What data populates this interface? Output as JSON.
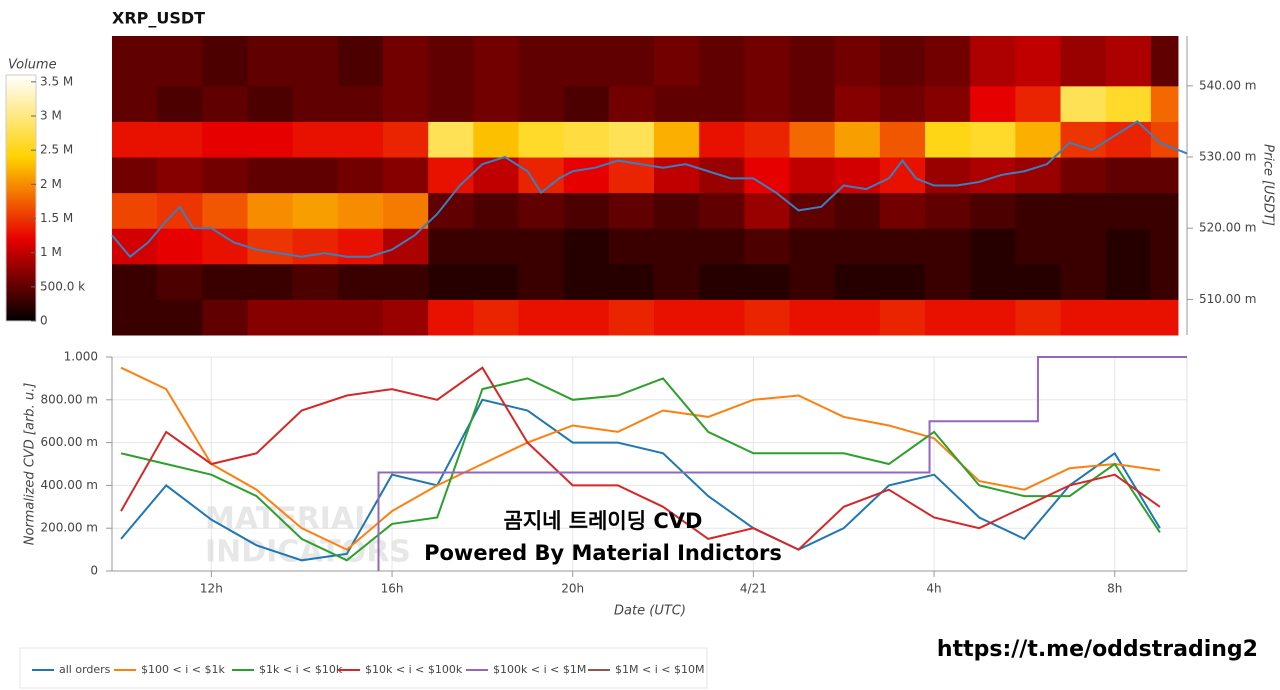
{
  "chart_data": [
    {
      "type": "heatmap",
      "title": "XRP_USDT",
      "colorbar_title": "Volume",
      "ylabel": "Price [USDT]",
      "xlim": [
        9.8,
        33.6
      ],
      "ylim": [
        505,
        547
      ],
      "x_bins": [
        9.8,
        10.8,
        11.8,
        12.8,
        13.8,
        14.8,
        15.8,
        16.8,
        17.8,
        18.8,
        19.8,
        20.8,
        21.8,
        22.8,
        23.8,
        24.8,
        25.8,
        26.8,
        27.8,
        28.8,
        29.8,
        30.8,
        31.8,
        32.8,
        33.4
      ],
      "y_bins": [
        505,
        510,
        515,
        520,
        525,
        530,
        535,
        540,
        547
      ],
      "z": [
        [
          0.3,
          0.3,
          0.5,
          0.7,
          0.7,
          0.7,
          0.8,
          1.3,
          1.4,
          1.3,
          1.3,
          1.4,
          1.3,
          1.3,
          1.4,
          1.3,
          1.3,
          1.4,
          1.3,
          1.3,
          1.4,
          1.3,
          1.3,
          1.3
        ],
        [
          0.3,
          0.4,
          0.3,
          0.3,
          0.4,
          0.3,
          0.3,
          0.2,
          0.2,
          0.3,
          0.2,
          0.2,
          0.3,
          0.2,
          0.2,
          0.3,
          0.2,
          0.2,
          0.3,
          0.2,
          0.2,
          0.3,
          0.2,
          0.3
        ],
        [
          1.1,
          1.2,
          1.3,
          1.5,
          1.4,
          1.3,
          0.9,
          0.3,
          0.3,
          0.3,
          0.2,
          0.3,
          0.3,
          0.3,
          0.4,
          0.3,
          0.3,
          0.3,
          0.3,
          0.2,
          0.3,
          0.3,
          0.2,
          0.3
        ],
        [
          1.6,
          1.5,
          1.7,
          2.0,
          2.1,
          2.0,
          1.9,
          0.5,
          0.4,
          0.5,
          0.4,
          0.5,
          0.4,
          0.5,
          0.8,
          0.5,
          0.4,
          0.6,
          0.5,
          0.4,
          0.3,
          0.3,
          0.3,
          0.3
        ],
        [
          0.6,
          0.7,
          0.6,
          0.5,
          0.5,
          0.6,
          0.7,
          1.3,
          1.0,
          1.4,
          1.2,
          1.4,
          1.0,
          0.8,
          1.2,
          1.0,
          1.1,
          1.3,
          0.8,
          0.9,
          0.8,
          0.6,
          0.5,
          0.5
        ],
        [
          1.3,
          1.3,
          1.2,
          1.2,
          1.3,
          1.3,
          1.4,
          2.8,
          2.3,
          2.6,
          2.7,
          2.8,
          2.2,
          1.3,
          1.4,
          1.8,
          2.1,
          1.7,
          2.5,
          2.6,
          2.2,
          1.5,
          1.4,
          1.6
        ],
        [
          0.5,
          0.4,
          0.5,
          0.4,
          0.5,
          0.5,
          0.6,
          0.5,
          0.6,
          0.5,
          0.4,
          0.6,
          0.5,
          0.5,
          0.6,
          0.5,
          0.7,
          0.6,
          0.7,
          1.2,
          1.4,
          2.8,
          2.6,
          1.8
        ],
        [
          0.5,
          0.5,
          0.4,
          0.5,
          0.5,
          0.4,
          0.6,
          0.5,
          0.6,
          0.5,
          0.5,
          0.5,
          0.6,
          0.5,
          0.6,
          0.5,
          0.6,
          0.5,
          0.6,
          0.9,
          1.0,
          0.8,
          0.9,
          0.5
        ]
      ],
      "colorscale": [
        "#000000",
        "#e60000",
        "#ffd200",
        "#ffffff"
      ],
      "zlim": [
        0,
        3.6
      ],
      "zticks": [
        0,
        {
          "value": 0.5,
          "label": "500.0 k"
        },
        {
          "value": 1,
          "label": "1 M"
        },
        {
          "value": 1.5,
          "label": "1.5 M"
        },
        {
          "value": 2,
          "label": "2 M"
        },
        {
          "value": 2.5,
          "label": "2.5 M"
        },
        {
          "value": 3,
          "label": "3 M"
        },
        {
          "value": 3.5,
          "label": "3.5 M"
        }
      ],
      "yticks": [
        {
          "value": 510,
          "label": "510.00 m"
        },
        {
          "value": 520,
          "label": "520.00 m"
        },
        {
          "value": 530,
          "label": "530.00 m"
        },
        {
          "value": 540,
          "label": "540.00 m"
        }
      ],
      "series": [
        {
          "color": "#3a7fc1",
          "x": [
            9.8,
            10.2,
            10.6,
            11,
            11.3,
            11.6,
            12,
            12.5,
            13,
            13.5,
            14,
            14.5,
            15,
            15.5,
            16,
            16.5,
            17,
            17.5,
            18,
            18.5,
            19,
            19.3,
            19.7,
            20,
            20.5,
            21,
            21.5,
            22,
            22.5,
            23,
            23.5,
            24,
            24.5,
            25,
            25.5,
            26,
            26.5,
            27,
            27.3,
            27.6,
            28,
            28.5,
            29,
            29.5,
            30,
            30.5,
            31,
            31.5,
            32,
            32.5,
            33,
            33.6
          ],
          "values": [
            519,
            516,
            518,
            521,
            523,
            520,
            520,
            518,
            517,
            516.5,
            516,
            516.5,
            516,
            516,
            517,
            519,
            522,
            526,
            529,
            530,
            528,
            525,
            527,
            528,
            528.5,
            529.5,
            529,
            528.5,
            529,
            528,
            527,
            527,
            525,
            522.5,
            523,
            526,
            525.5,
            527,
            529.5,
            527,
            526,
            526,
            526.5,
            527.5,
            528,
            529,
            532,
            531,
            533,
            535,
            532,
            530.5
          ]
        }
      ]
    },
    {
      "type": "line",
      "xlabel": "Date (UTC)",
      "ylabel": "Normalized CVD [arb. u.]",
      "grid": true,
      "legend": "bottom",
      "xlim": [
        9.8,
        33.6
      ],
      "ylim": [
        0,
        1
      ],
      "xticks": [
        {
          "value": 12,
          "label": "12h"
        },
        {
          "value": 16,
          "label": "16h"
        },
        {
          "value": 20,
          "label": "20h"
        },
        {
          "value": 24,
          "label": "4/21"
        },
        {
          "value": 28,
          "label": "4h"
        },
        {
          "value": 32,
          "label": "8h"
        }
      ],
      "yticks": [
        0,
        {
          "value": 0.2,
          "label": "200.00 m"
        },
        {
          "value": 0.4,
          "label": "400.00 m"
        },
        {
          "value": 0.6,
          "label": "600.00 m"
        },
        {
          "value": 0.8,
          "label": "800.00 m"
        },
        {
          "value": 1,
          "label": "1.000"
        }
      ],
      "x": [
        10,
        11,
        12,
        13,
        14,
        15,
        16,
        17,
        18,
        19,
        20,
        21,
        22,
        23,
        24,
        25,
        26,
        27,
        28,
        29,
        30,
        31,
        32,
        33
      ],
      "series": [
        {
          "name": "all orders",
          "color": "#1f77b4",
          "values": [
            0.15,
            0.4,
            0.24,
            0.12,
            0.05,
            0.08,
            0.45,
            0.4,
            0.8,
            0.75,
            0.6,
            0.6,
            0.55,
            0.35,
            0.2,
            0.1,
            0.2,
            0.4,
            0.45,
            0.25,
            0.15,
            0.4,
            0.55,
            0.2
          ]
        },
        {
          "name": "$100 < i < $1k",
          "color": "#ff7f0e",
          "values": [
            0.95,
            0.85,
            0.5,
            0.38,
            0.2,
            0.1,
            0.28,
            0.4,
            0.5,
            0.6,
            0.68,
            0.65,
            0.75,
            0.72,
            0.8,
            0.82,
            0.72,
            0.68,
            0.62,
            0.42,
            0.38,
            0.48,
            0.5,
            0.47
          ]
        },
        {
          "name": "$1k < i < $10k",
          "color": "#2ca02c",
          "values": [
            0.55,
            0.5,
            0.45,
            0.35,
            0.15,
            0.05,
            0.22,
            0.25,
            0.85,
            0.9,
            0.8,
            0.82,
            0.9,
            0.65,
            0.55,
            0.55,
            0.55,
            0.5,
            0.65,
            0.4,
            0.35,
            0.35,
            0.5,
            0.18
          ]
        },
        {
          "name": "$10k < i < $100k",
          "color": "#d62728",
          "values": [
            0.28,
            0.65,
            0.5,
            0.55,
            0.75,
            0.82,
            0.85,
            0.8,
            0.95,
            0.6,
            0.4,
            0.4,
            0.3,
            0.15,
            0.2,
            0.1,
            0.3,
            0.38,
            0.25,
            0.2,
            0.3,
            0.4,
            0.45,
            0.3
          ]
        },
        {
          "name": "$100k < i < $1M",
          "color": "#9467bd",
          "x": [
            15.7,
            15.7,
            27.9,
            27.9,
            30.3,
            30.3,
            33.6
          ],
          "values": [
            0,
            0.46,
            0.46,
            0.7,
            0.7,
            1,
            1
          ]
        },
        {
          "name": "$1M < i < $10M",
          "color": "#8c564b",
          "values": [
            null,
            null,
            null,
            null,
            null,
            null,
            null,
            null,
            null,
            null,
            null,
            null,
            null,
            null,
            null,
            null,
            null,
            null,
            null,
            null,
            null,
            null,
            null,
            null
          ]
        }
      ],
      "watermark": [
        "MATERIAL",
        "INDICATORS"
      ],
      "annotations": [
        "곰지네 트레이딩 CVD",
        "Powered By Material Indictors"
      ]
    }
  ],
  "footer": {
    "link": "https://t.me/oddstrading2"
  }
}
